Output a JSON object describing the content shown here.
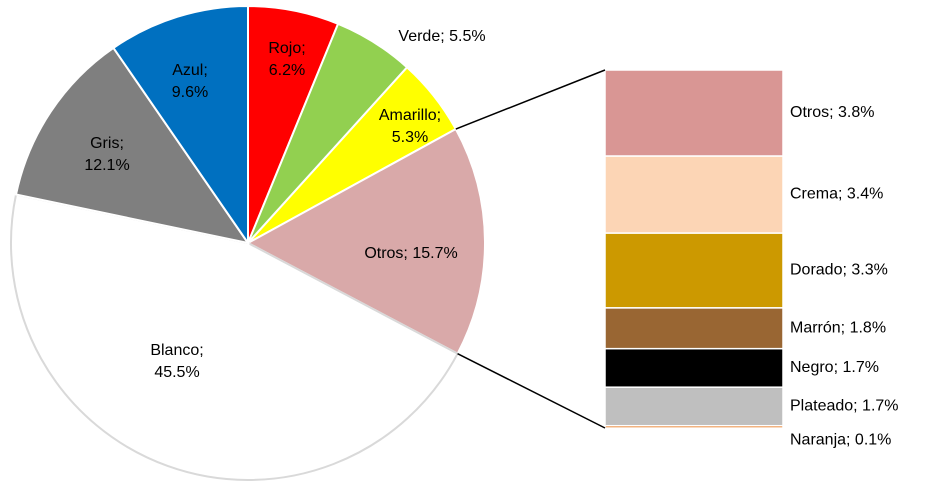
{
  "chart_data": [
    {
      "type": "pie",
      "categories": [
        "Rojo",
        "Verde",
        "Amarillo",
        "Otros",
        "Blanco",
        "Gris",
        "Azul"
      ],
      "values": [
        6.2,
        5.5,
        5.3,
        15.7,
        45.5,
        12.1,
        9.6
      ],
      "value_labels": [
        "Rojo;\n6.2%",
        "Verde; 5.5%",
        "Amarillo;\n5.3%",
        "Otros; 15.7%",
        "Blanco;\n45.5%",
        "Gris;\n12.1%",
        "Azul;\n9.6%"
      ],
      "colors": [
        "#ff0000",
        "#92d050",
        "#ffff00",
        "#d9a9a9",
        "#ffffff",
        "#7f7f7f",
        "#0070c0"
      ]
    },
    {
      "type": "bar",
      "categories": [
        "Otros",
        "Crema",
        "Dorado",
        "Marrón",
        "Negro",
        "Plateado",
        "Naranja"
      ],
      "values": [
        3.8,
        3.4,
        3.3,
        1.8,
        1.7,
        1.7,
        0.1
      ],
      "value_labels": [
        "Otros; 3.8%",
        "Crema; 3.4%",
        "Dorado; 3.3%",
        "Marrón; 1.8%",
        "Negro; 1.7%",
        "Plateado; 1.7%",
        "Naranja; 0.1%"
      ],
      "colors": [
        "#d99694",
        "#fcd5b5",
        "#cc9900",
        "#996633",
        "#000000",
        "#bfbfbf",
        "#e46c0a"
      ]
    }
  ]
}
